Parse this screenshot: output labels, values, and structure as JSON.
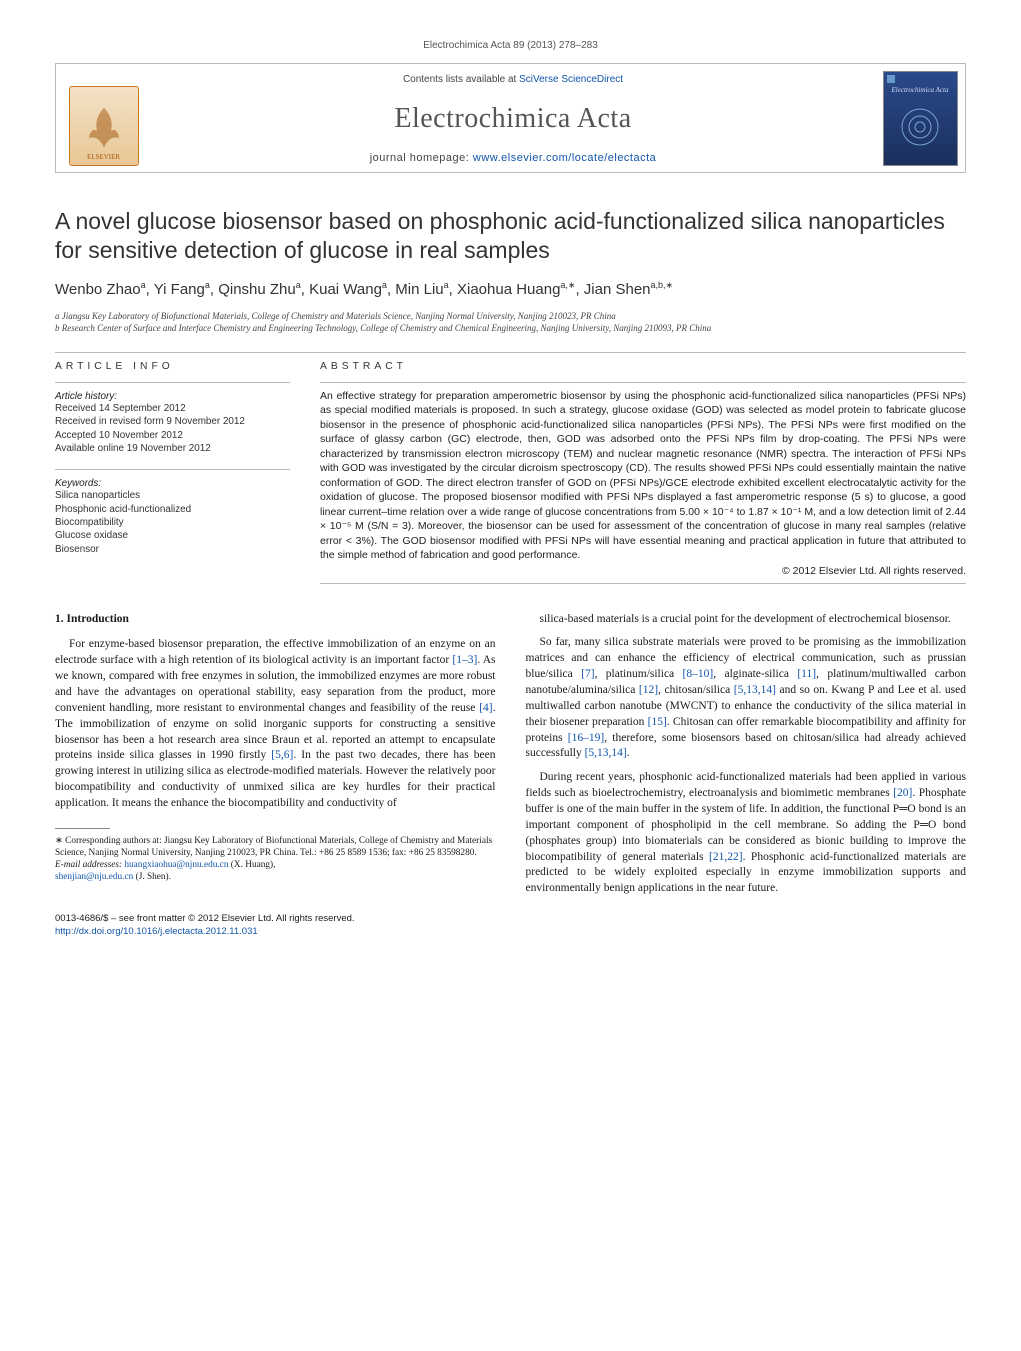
{
  "runningHead": "Electrochimica Acta 89 (2013) 278–283",
  "banner": {
    "contentsPrefix": "Contents lists available at ",
    "contentsLink": "SciVerse ScienceDirect",
    "journalName": "Electrochimica Acta",
    "homepagePrefix": "journal homepage: ",
    "homepageLink": "www.elsevier.com/locate/electacta",
    "elsevierLabel": "ELSEVIER",
    "coverLabel": "Electrochimica Acta"
  },
  "title": "A novel glucose biosensor based on phosphonic acid-functionalized silica nanoparticles for sensitive detection of glucose in real samples",
  "authorsHtml": "Wenbo Zhao<sup>a</sup>, Yi Fang<sup>a</sup>, Qinshu Zhu<sup>a</sup>, Kuai Wang<sup>a</sup>, Min Liu<sup>a</sup>, Xiaohua Huang<sup>a,∗</sup>, Jian Shen<sup>a,b,∗</sup>",
  "affiliations": [
    "a Jiangsu Key Laboratory of Biofunctional Materials, College of Chemistry and Materials Science, Nanjing Normal University, Nanjing 210023, PR China",
    "b Research Center of Surface and Interface Chemistry and Engineering Technology, College of Chemistry and Chemical Engineering, Nanjing University, Nanjing 210093, PR China"
  ],
  "info": {
    "head": "article info",
    "historyHead": "Article history:",
    "history": [
      "Received 14 September 2012",
      "Received in revised form 9 November 2012",
      "Accepted 10 November 2012",
      "Available online 19 November 2012"
    ],
    "keywordsHead": "Keywords:",
    "keywords": [
      "Silica nanoparticles",
      "Phosphonic acid-functionalized",
      "Biocompatibility",
      "Glucose oxidase",
      "Biosensor"
    ]
  },
  "abstract": {
    "head": "abstract",
    "text": "An effective strategy for preparation amperometric biosensor by using the phosphonic acid-functionalized silica nanoparticles (PFSi NPs) as special modified materials is proposed. In such a strategy, glucose oxidase (GOD) was selected as model protein to fabricate glucose biosensor in the presence of phosphonic acid-functionalized silica nanoparticles (PFSi NPs). The PFSi NPs were first modified on the surface of glassy carbon (GC) electrode, then, GOD was adsorbed onto the PFSi NPs film by drop-coating. The PFSi NPs were characterized by transmission electron microscopy (TEM) and nuclear magnetic resonance (NMR) spectra. The interaction of PFSi NPs with GOD was investigated by the circular dicroism spectroscopy (CD). The results showed PFSi NPs could essentially maintain the native conformation of GOD. The direct electron transfer of GOD on (PFSi NPs)/GCE electrode exhibited excellent electrocatalytic activity for the oxidation of glucose. The proposed biosensor modified with PFSi NPs displayed a fast amperometric response (5 s) to glucose, a good linear current–time relation over a wide range of glucose concentrations from 5.00 × 10⁻⁴ to 1.87 × 10⁻¹ M, and a low detection limit of 2.44 × 10⁻⁵ M (S/N = 3). Moreover, the biosensor can be used for assessment of the concentration of glucose in many real samples (relative error < 3%). The GOD biosensor modified with PFSi NPs will have essential meaning and practical application in future that attributed to the simple method of fabrication and good performance.",
    "copyright": "© 2012 Elsevier Ltd. All rights reserved."
  },
  "section1": {
    "head": "1. Introduction",
    "p1": "For enzyme-based biosensor preparation, the effective immobilization of an enzyme on an electrode surface with a high retention of its biological activity is an important factor <span class=\"cite\">[1–3]</span>. As we known, compared with free enzymes in solution, the immobilized enzymes are more robust and have the advantages on operational stability, easy separation from the product, more convenient handling, more resistant to environmental changes and feasibility of the reuse <span class=\"cite\">[4]</span>. The immobilization of enzyme on solid inorganic supports for constructing a sensitive biosensor has been a hot research area since Braun et al. reported an attempt to encapsulate proteins inside silica glasses in 1990 firstly <span class=\"cite\">[5,6]</span>. In the past two decades, there has been growing interest in utilizing silica as electrode-modified materials. However the relatively poor biocompatibility and conductivity of unmixed silica are key hurdles for their practical application. It means the enhance the biocompatibility and conductivity of",
    "p2": "silica-based materials is a crucial point for the development of electrochemical biosensor.",
    "p3": "So far, many silica substrate materials were proved to be promising as the immobilization matrices and can enhance the efficiency of electrical communication, such as prussian blue/silica <span class=\"cite\">[7]</span>, platinum/silica <span class=\"cite\">[8–10]</span>, alginate-silica <span class=\"cite\">[11]</span>, platinum/multiwalled carbon nanotube/alumina/silica <span class=\"cite\">[12]</span>, chitosan/silica <span class=\"cite\">[5,13,14]</span> and so on. Kwang P and Lee et al. used multiwalled carbon nanotube (MWCNT) to enhance the conductivity of the silica material in their biosener preparation <span class=\"cite\">[15]</span>. Chitosan can offer remarkable biocompatibility and affinity for proteins <span class=\"cite\">[16–19]</span>, therefore, some biosensors based on chitosan/silica had already achieved successfully <span class=\"cite\">[5,13,14]</span>.",
    "p4": "During recent years, phosphonic acid-functionalized materials had been applied in various fields such as bioelectrochemistry, electroanalysis and biomimetic membranes <span class=\"cite\">[20]</span>. Phosphate buffer is one of the main buffer in the system of life. In addition, the functional P═O bond is an important component of phospholipid in the cell membrane. So adding the P═O bond (phosphates group) into biomaterials can be considered as bionic building to improve the biocompatibility of general materials <span class=\"cite\">[21,22]</span>. Phosphonic acid-functionalized materials are predicted to be widely exploited especially in enzyme immobilization supports and environmentally benign applications in the near future."
  },
  "footnote": {
    "line1": "∗ Corresponding authors at: Jiangsu Key Laboratory of Biofunctional Materials, College of Chemistry and Materials Science, Nanjing Normal University, Nanjing 210023, PR China. Tel.: +86 25 8589 1536; fax: +86 25 83598280.",
    "emailLabel": "E-mail addresses: ",
    "email1": "huangxiaohua@njnu.edu.cn",
    "email1Who": " (X. Huang), ",
    "email2": "shenjian@nju.edu.cn",
    "email2Who": " (J. Shen)."
  },
  "doi": {
    "front": "0013-4686/$ – see front matter © 2012 Elsevier Ltd. All rights reserved.",
    "link": "http://dx.doi.org/10.1016/j.electacta.2012.11.031"
  }
}
